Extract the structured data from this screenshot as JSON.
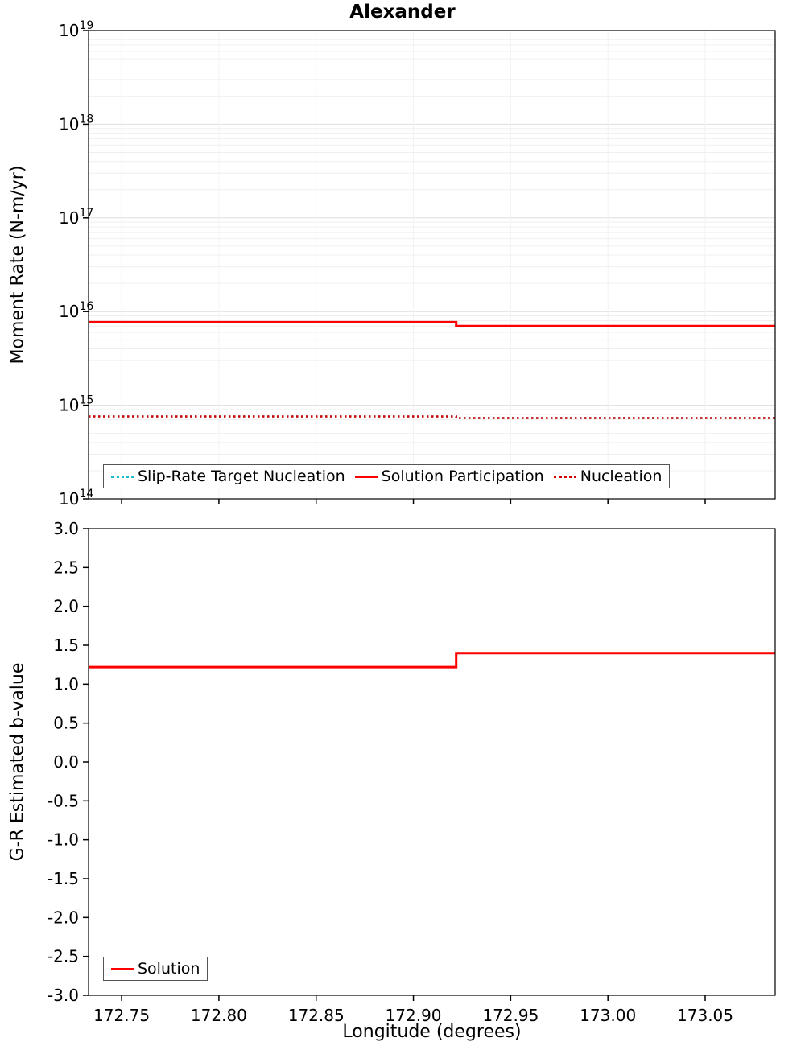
{
  "figure": {
    "background": "#ffffff",
    "accent_red": "#ff0000",
    "accent_dark_red": "#d40000",
    "accent_teal": "#17becf"
  },
  "chart_data": [
    {
      "id": "moment-rate",
      "type": "line",
      "title": "Alexander",
      "ylabel": "Moment Rate (N-m/yr)",
      "xlabel": "",
      "x_range": [
        172.733,
        173.086
      ],
      "x_ticks": [
        172.75,
        172.8,
        172.85,
        172.9,
        172.95,
        173.0,
        173.05
      ],
      "x_tick_labels": [
        "172.75",
        "172.80",
        "172.85",
        "172.90",
        "172.95",
        "173.00",
        "173.05"
      ],
      "show_x_tick_labels": false,
      "y_scale": "log",
      "y_range_exp": [
        14,
        19
      ],
      "y_ticks_exp": [
        19,
        18,
        17,
        16,
        15,
        14
      ],
      "grid": true,
      "legend_position": "bottom-left",
      "series": [
        {
          "name": "Slip-Rate Target Nucleation",
          "color": "#17becf",
          "style": "dotted",
          "width": 2.5,
          "x": [
            172.733,
            172.922,
            172.922,
            173.086
          ],
          "y": [
            760000000000000.0,
            760000000000000.0,
            730000000000000.0,
            730000000000000.0
          ]
        },
        {
          "name": "Solution Participation",
          "color": "#ff0000",
          "style": "solid",
          "width": 3,
          "x": [
            172.733,
            172.922,
            172.922,
            173.086
          ],
          "y": [
            7700000000000000.0,
            7700000000000000.0,
            7000000000000000.0,
            7000000000000000.0
          ]
        },
        {
          "name": "Nucleation",
          "color": "#d40000",
          "style": "dotted",
          "width": 2.5,
          "x": [
            172.733,
            172.922,
            172.922,
            173.086
          ],
          "y": [
            760000000000000.0,
            760000000000000.0,
            730000000000000.0,
            730000000000000.0
          ]
        }
      ],
      "legend": [
        "Slip-Rate Target Nucleation",
        "Solution Participation",
        "Nucleation"
      ]
    },
    {
      "id": "b-value",
      "type": "line",
      "title": "",
      "ylabel": "G-R Estimated b-value",
      "xlabel": "Longitude (degrees)",
      "x_range": [
        172.733,
        173.086
      ],
      "x_ticks": [
        172.75,
        172.8,
        172.85,
        172.9,
        172.95,
        173.0,
        173.05
      ],
      "x_tick_labels": [
        "172.75",
        "172.80",
        "172.85",
        "172.90",
        "172.95",
        "173.00",
        "173.05"
      ],
      "show_x_tick_labels": true,
      "y_scale": "linear",
      "y_range": [
        -3.0,
        3.0
      ],
      "y_tick_values": [
        3.0,
        2.5,
        2.0,
        1.5,
        1.0,
        0.5,
        0.0,
        -0.5,
        -1.0,
        -1.5,
        -2.0,
        -2.5,
        -3.0
      ],
      "y_tick_labels": [
        "3.0",
        "2.5",
        "2.0",
        "1.5",
        "1.0",
        "0.5",
        "0.0",
        "-0.5",
        "-1.0",
        "-1.5",
        "-2.0",
        "-2.5",
        "-3.0"
      ],
      "grid": false,
      "legend_position": "bottom-left",
      "series": [
        {
          "name": "Solution",
          "color": "#ff0000",
          "style": "solid",
          "width": 3,
          "x": [
            172.733,
            172.922,
            172.922,
            173.086
          ],
          "y": [
            1.22,
            1.22,
            1.4,
            1.4
          ]
        }
      ],
      "legend": [
        "Solution"
      ]
    }
  ]
}
